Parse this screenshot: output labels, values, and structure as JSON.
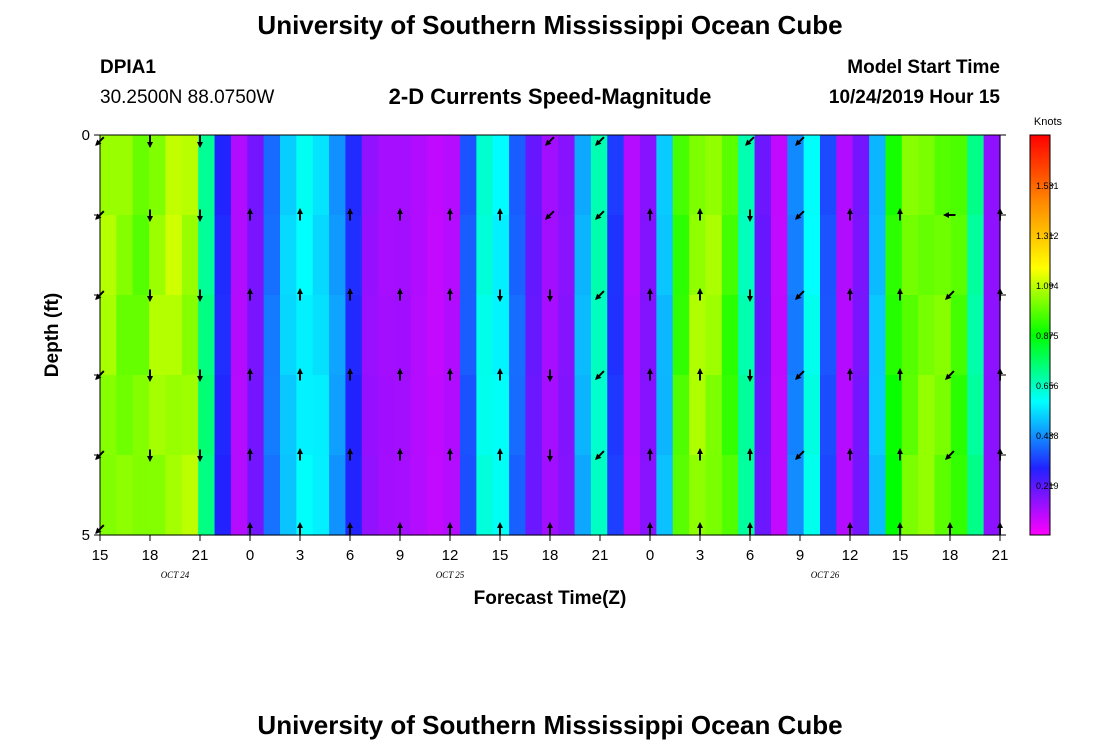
{
  "header": {
    "title": "University of Southern Mississippi Ocean Cube",
    "station_id": "DPIA1",
    "station_coords": "30.2500N 88.0750W",
    "plot_title": "2-D Currents Speed-Magnitude",
    "model_start_label": "Model Start Time",
    "model_start_value": "10/24/2019 Hour 15"
  },
  "footer": {
    "title": "University of Southern Mississippi Ocean Cube"
  },
  "chart_data": {
    "type": "heatmap",
    "title": "2-D Currents Speed-Magnitude",
    "xlabel": "Forecast Time(Z)",
    "ylabel": "Depth (ft)",
    "x_start_hour": 15,
    "x_end_hour": 69,
    "x_ticks": [
      "15",
      "18",
      "21",
      "0",
      "3",
      "6",
      "9",
      "12",
      "15",
      "18",
      "21",
      "0",
      "3",
      "6",
      "9",
      "12",
      "15",
      "18",
      "21"
    ],
    "date_labels": [
      {
        "text": "OCT  24",
        "hour": 19.5
      },
      {
        "text": "OCT  25",
        "hour": 36
      },
      {
        "text": "OCT  26",
        "hour": 58.5
      }
    ],
    "y_ticks": [
      "0",
      "5"
    ],
    "ylim": [
      0,
      5
    ],
    "colorbar": {
      "unit": "Knots",
      "tick_labels": [
        "1.531",
        "1.312",
        "1.094",
        "0.875",
        "0.656",
        "0.438",
        "0.219"
      ],
      "tick_values": [
        1.531,
        1.312,
        1.094,
        0.875,
        0.656,
        0.438,
        0.219
      ],
      "min": 0,
      "max": 1.75,
      "colors": [
        "#ff00ff",
        "#2222ff",
        "#00ffff",
        "#00ff00",
        "#ffff00",
        "#ff8800",
        "#ff0000"
      ]
    },
    "speed_by_hour": [
      1.05,
      1.02,
      1.0,
      1.05,
      1.08,
      1.06,
      0.72,
      0.3,
      0.1,
      0.18,
      0.4,
      0.52,
      0.58,
      0.55,
      0.45,
      0.3,
      0.14,
      0.12,
      0.12,
      0.1,
      0.08,
      0.1,
      0.36,
      0.62,
      0.58,
      0.38,
      0.2,
      0.12,
      0.16,
      0.48,
      0.66,
      0.32,
      0.1,
      0.16,
      0.5,
      0.95,
      1.05,
      1.04,
      0.95,
      0.68,
      0.2,
      0.08,
      0.42,
      0.6,
      0.35,
      0.1,
      0.18,
      0.5,
      0.9,
      1.0,
      1.02,
      1.0,
      0.95,
      0.7,
      0.15
    ],
    "arrows": {
      "depths": [
        0,
        1,
        2,
        3,
        4,
        5
      ],
      "columns": [
        {
          "hour": 15,
          "dirs": [
            "SW",
            "SW",
            "SW",
            "SW",
            "SW",
            "SW"
          ]
        },
        {
          "hour": 18,
          "dirs": [
            "S",
            "S",
            "S",
            "S",
            "S",
            ""
          ]
        },
        {
          "hour": 21,
          "dirs": [
            "S",
            "S",
            "S",
            "S",
            "S",
            ""
          ]
        },
        {
          "hour": 24,
          "dirs": [
            "",
            "N",
            "N",
            "N",
            "N",
            "N"
          ]
        },
        {
          "hour": 27,
          "dirs": [
            "",
            "N",
            "N",
            "N",
            "N",
            "N"
          ]
        },
        {
          "hour": 30,
          "dirs": [
            "",
            "N",
            "N",
            "N",
            "N",
            "N"
          ]
        },
        {
          "hour": 33,
          "dirs": [
            "",
            "N",
            "N",
            "N",
            "N",
            "N"
          ]
        },
        {
          "hour": 36,
          "dirs": [
            "",
            "N",
            "N",
            "N",
            "N",
            "N"
          ]
        },
        {
          "hour": 39,
          "dirs": [
            "",
            "N",
            "S",
            "N",
            "N",
            "N"
          ]
        },
        {
          "hour": 42,
          "dirs": [
            "SW",
            "SW",
            "S",
            "S",
            "S",
            "N"
          ]
        },
        {
          "hour": 45,
          "dirs": [
            "SW",
            "SW",
            "SW",
            "SW",
            "SW",
            ""
          ]
        },
        {
          "hour": 48,
          "dirs": [
            "",
            "N",
            "N",
            "N",
            "N",
            "N"
          ]
        },
        {
          "hour": 51,
          "dirs": [
            "",
            "N",
            "N",
            "N",
            "N",
            "N"
          ]
        },
        {
          "hour": 54,
          "dirs": [
            "SW",
            "S",
            "S",
            "S",
            "N",
            "N"
          ]
        },
        {
          "hour": 57,
          "dirs": [
            "SW",
            "SW",
            "SW",
            "SW",
            "SW",
            ""
          ]
        },
        {
          "hour": 60,
          "dirs": [
            "",
            "N",
            "N",
            "N",
            "N",
            "N"
          ]
        },
        {
          "hour": 63,
          "dirs": [
            "",
            "N",
            "N",
            "N",
            "N",
            "N"
          ]
        },
        {
          "hour": 66,
          "dirs": [
            "",
            "W",
            "SW",
            "SW",
            "SW",
            "N"
          ]
        },
        {
          "hour": 69,
          "dirs": [
            "",
            "N",
            "N",
            "N",
            "N",
            "N"
          ]
        }
      ]
    },
    "grid": false,
    "legend": "colorbar-right"
  }
}
